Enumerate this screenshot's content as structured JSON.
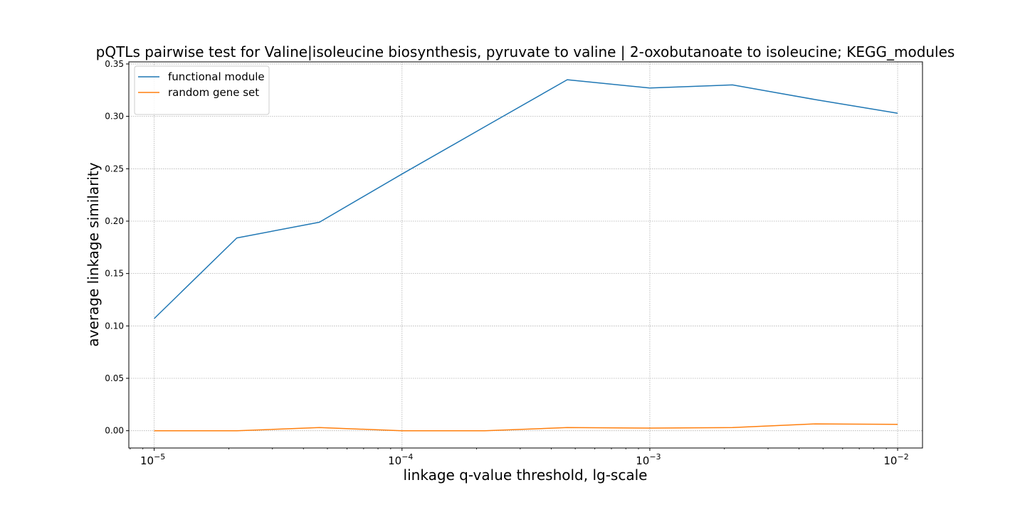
{
  "chart_data": {
    "type": "line",
    "title": "pQTLs pairwise test for Valine|isoleucine biosynthesis, pyruvate to valine | 2-oxobutanoate to isoleucine; KEGG_modules",
    "xlabel": "linkage q-value threshold, lg-scale",
    "ylabel": "average linkage similarity",
    "x_scale": "log",
    "x": [
      1e-05,
      2.15443e-05,
      4.64159e-05,
      0.0001,
      0.000215443,
      0.000464159,
      0.001,
      0.00215443,
      0.00464159,
      0.01
    ],
    "xlim": [
      7.9e-06,
      0.0126
    ],
    "ylim": [
      -0.0165,
      0.352
    ],
    "x_ticks": [
      {
        "value": 1e-05,
        "base": "10",
        "exp": "−5"
      },
      {
        "value": 0.0001,
        "base": "10",
        "exp": "−4"
      },
      {
        "value": 0.001,
        "base": "10",
        "exp": "−3"
      },
      {
        "value": 0.01,
        "base": "10",
        "exp": "−2"
      }
    ],
    "y_ticks": [
      0.0,
      0.05,
      0.1,
      0.15,
      0.2,
      0.25,
      0.3,
      0.35
    ],
    "y_tick_labels": [
      "0.00",
      "0.05",
      "0.10",
      "0.15",
      "0.20",
      "0.25",
      "0.30",
      "0.35"
    ],
    "grid": true,
    "legend_position": "top-left",
    "series": [
      {
        "name": "functional module",
        "color": "#1f77b4",
        "values": [
          0.107,
          0.184,
          0.199,
          0.245,
          0.29,
          0.335,
          0.327,
          0.33,
          0.316,
          0.303
        ]
      },
      {
        "name": "random gene set",
        "color": "#ff7f0e",
        "values": [
          0.0,
          0.0,
          0.003,
          0.0,
          0.0,
          0.003,
          0.0025,
          0.003,
          0.0065,
          0.006
        ]
      }
    ]
  }
}
